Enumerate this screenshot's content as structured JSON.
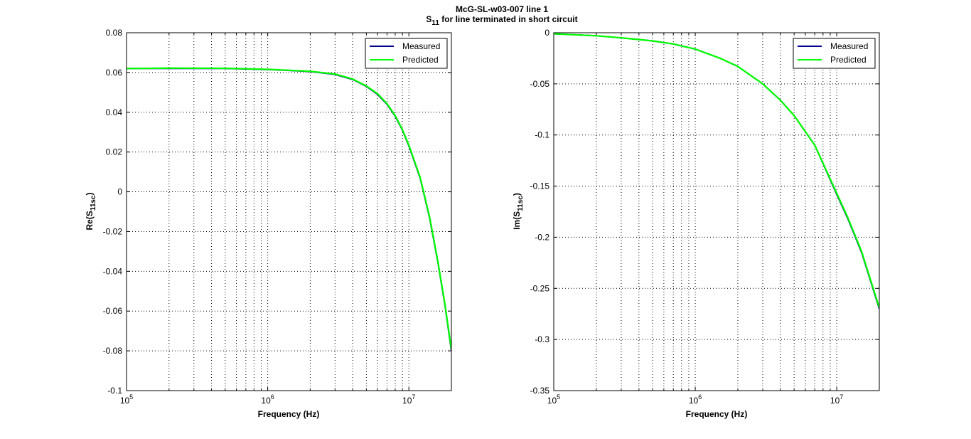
{
  "figure_title": {
    "line1": "McG-SL-w03-007 line 1",
    "line2_symbol": "S",
    "line2_sub": "11",
    "line2_rest": " for line terminated in short circuit"
  },
  "colors": {
    "measured": "#00008b",
    "predicted": "#00ff00",
    "grid": "#000000",
    "axes": "#000000"
  },
  "chart_data": [
    {
      "type": "line",
      "xscale": "log",
      "xlim": [
        100000,
        20000000
      ],
      "ylim": [
        -0.1,
        0.08
      ],
      "grid": true,
      "legend_position": "top-right",
      "xlabel": "Frequency (Hz)",
      "ylabel": {
        "prefix": "Re(S",
        "sub": "11sc",
        "suffix": ")"
      },
      "x_ticks": [
        {
          "value": 100000,
          "base": "10",
          "exp": "5"
        },
        {
          "value": 1000000,
          "base": "10",
          "exp": "6"
        },
        {
          "value": 10000000,
          "base": "10",
          "exp": "7"
        }
      ],
      "y_ticks": [
        {
          "value": 0.08,
          "label": "0.08"
        },
        {
          "value": 0.06,
          "label": "0.06"
        },
        {
          "value": 0.04,
          "label": "0.04"
        },
        {
          "value": 0.02,
          "label": "0.02"
        },
        {
          "value": 0,
          "label": "0"
        },
        {
          "value": -0.02,
          "label": "-0.02"
        },
        {
          "value": -0.04,
          "label": "-0.04"
        },
        {
          "value": -0.06,
          "label": "-0.06"
        },
        {
          "value": -0.08,
          "label": "-0.08"
        },
        {
          "value": -0.1,
          "label": "-0.1"
        }
      ],
      "series": [
        {
          "name": "Measured",
          "color": "#00008b",
          "x": [
            100000,
            200000,
            500000,
            1000000,
            2000000,
            3000000,
            4000000,
            5000000,
            6000000,
            7000000,
            8000000,
            9000000,
            10000000,
            12000000,
            14000000,
            16000000,
            18000000,
            20000000
          ],
          "y": [
            0.062,
            0.062,
            0.062,
            0.0615,
            0.0605,
            0.059,
            0.0565,
            0.053,
            0.049,
            0.044,
            0.038,
            0.031,
            0.023,
            0.007,
            -0.013,
            -0.035,
            -0.057,
            -0.08
          ]
        },
        {
          "name": "Predicted",
          "color": "#00ff00",
          "x": [
            100000,
            200000,
            500000,
            1000000,
            2000000,
            3000000,
            4000000,
            5000000,
            6000000,
            7000000,
            8000000,
            9000000,
            10000000,
            12000000,
            14000000,
            16000000,
            18000000,
            20000000
          ],
          "y": [
            0.062,
            0.0622,
            0.0621,
            0.0616,
            0.0606,
            0.0592,
            0.0567,
            0.0532,
            0.0493,
            0.0443,
            0.0383,
            0.0313,
            0.0234,
            0.0074,
            -0.0125,
            -0.0345,
            -0.0565,
            -0.0792
          ]
        }
      ]
    },
    {
      "type": "line",
      "xscale": "log",
      "xlim": [
        100000,
        20000000
      ],
      "ylim": [
        -0.35,
        0
      ],
      "grid": true,
      "legend_position": "top-right",
      "xlabel": "Frequency (Hz)",
      "ylabel": {
        "prefix": "Im(S",
        "sub": "11sc",
        "suffix": ")"
      },
      "x_ticks": [
        {
          "value": 100000,
          "base": "10",
          "exp": "5"
        },
        {
          "value": 1000000,
          "base": "10",
          "exp": "6"
        },
        {
          "value": 10000000,
          "base": "10",
          "exp": "7"
        }
      ],
      "y_ticks": [
        {
          "value": 0,
          "label": "0"
        },
        {
          "value": -0.05,
          "label": "-0.05"
        },
        {
          "value": -0.1,
          "label": "-0.1"
        },
        {
          "value": -0.15,
          "label": "-0.15"
        },
        {
          "value": -0.2,
          "label": "-0.2"
        },
        {
          "value": -0.25,
          "label": "-0.25"
        },
        {
          "value": -0.3,
          "label": "-0.3"
        },
        {
          "value": -0.35,
          "label": "-0.35"
        }
      ],
      "series": [
        {
          "name": "Measured",
          "color": "#00008b",
          "x": [
            100000,
            200000,
            300000,
            500000,
            700000,
            1000000,
            1500000,
            2000000,
            3000000,
            4000000,
            5000000,
            7000000,
            10000000,
            12000000,
            15000000,
            20000000
          ],
          "y": [
            -0.001,
            -0.003,
            -0.005,
            -0.008,
            -0.011,
            -0.016,
            -0.025,
            -0.033,
            -0.05,
            -0.066,
            -0.081,
            -0.11,
            -0.158,
            -0.182,
            -0.215,
            -0.27
          ]
        },
        {
          "name": "Predicted",
          "color": "#00ff00",
          "x": [
            100000,
            200000,
            300000,
            500000,
            700000,
            1000000,
            1500000,
            2000000,
            3000000,
            4000000,
            5000000,
            7000000,
            10000000,
            12000000,
            15000000,
            20000000
          ],
          "y": [
            -0.001,
            -0.003,
            -0.005,
            -0.008,
            -0.011,
            -0.016,
            -0.025,
            -0.033,
            -0.05,
            -0.066,
            -0.081,
            -0.11,
            -0.157,
            -0.181,
            -0.214,
            -0.269
          ]
        }
      ]
    }
  ]
}
